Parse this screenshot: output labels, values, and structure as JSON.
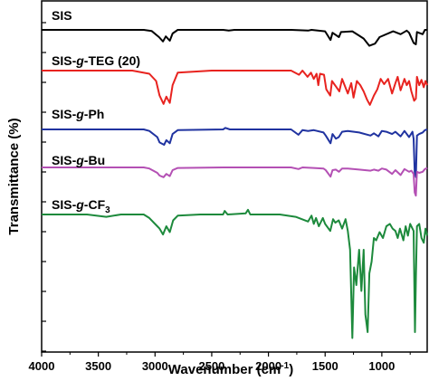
{
  "chart_data": {
    "type": "line",
    "title": "",
    "xlabel_main": "Wavenumber (cm",
    "xlabel_sup": "-1",
    "xlabel_end": ")",
    "ylabel": "Transmittance (%)",
    "xlim": [
      4000,
      600
    ],
    "x_reversed": true,
    "y_tick_labels": false,
    "x_ticks": [
      4000,
      3500,
      3000,
      2500,
      2000,
      1500,
      1000
    ],
    "x_tick_labels": [
      "4000",
      "3500",
      "3000",
      "2500",
      "2000",
      "1500",
      "1000"
    ],
    "grid": false,
    "legend": "inline labels above each trace",
    "series": [
      {
        "name": "SIS",
        "label_parts": [
          {
            "t": "SIS",
            "i": false
          }
        ],
        "color": "#000000",
        "points": [
          [
            4000,
            0
          ],
          [
            3500,
            0
          ],
          [
            3100,
            0
          ],
          [
            3030,
            -1.5
          ],
          [
            2965,
            -10
          ],
          [
            2930,
            -16
          ],
          [
            2905,
            -9
          ],
          [
            2870,
            -15
          ],
          [
            2845,
            -5
          ],
          [
            2800,
            0
          ],
          [
            2400,
            0
          ],
          [
            2350,
            -1
          ],
          [
            2300,
            0
          ],
          [
            1800,
            0
          ],
          [
            1650,
            -1
          ],
          [
            1620,
            0
          ],
          [
            1500,
            -2
          ],
          [
            1452,
            -14
          ],
          [
            1435,
            -4
          ],
          [
            1378,
            -10
          ],
          [
            1360,
            -3
          ],
          [
            1260,
            -2
          ],
          [
            1200,
            -8
          ],
          [
            1160,
            -12
          ],
          [
            1110,
            -22
          ],
          [
            1060,
            -19
          ],
          [
            1020,
            -10
          ],
          [
            900,
            -2
          ],
          [
            835,
            -6
          ],
          [
            780,
            -1
          ],
          [
            760,
            -4
          ],
          [
            720,
            -18
          ],
          [
            700,
            -20
          ],
          [
            690,
            -3
          ],
          [
            640,
            -6
          ],
          [
            620,
            0
          ],
          [
            600,
            0
          ]
        ]
      },
      {
        "name": "SIS-g-TEG (20)",
        "label_parts": [
          {
            "t": "SIS-",
            "i": false
          },
          {
            "t": "g",
            "i": true
          },
          {
            "t": "-TEG (20)",
            "i": false
          }
        ],
        "color": "#e8231f",
        "points": [
          [
            4000,
            0
          ],
          [
            3600,
            0
          ],
          [
            3200,
            0
          ],
          [
            3050,
            -3
          ],
          [
            2990,
            -10
          ],
          [
            2960,
            -24
          ],
          [
            2925,
            -32
          ],
          [
            2900,
            -25
          ],
          [
            2870,
            -31
          ],
          [
            2845,
            -14
          ],
          [
            2800,
            -2
          ],
          [
            2500,
            0
          ],
          [
            2300,
            0
          ],
          [
            1950,
            0
          ],
          [
            1800,
            0
          ],
          [
            1730,
            -4
          ],
          [
            1700,
            0
          ],
          [
            1655,
            -6
          ],
          [
            1625,
            -2
          ],
          [
            1600,
            -8
          ],
          [
            1575,
            -3
          ],
          [
            1560,
            -14
          ],
          [
            1545,
            -3
          ],
          [
            1510,
            -4
          ],
          [
            1490,
            -18
          ],
          [
            1455,
            -24
          ],
          [
            1440,
            -10
          ],
          [
            1400,
            -16
          ],
          [
            1375,
            -20
          ],
          [
            1350,
            -8
          ],
          [
            1300,
            -22
          ],
          [
            1270,
            -12
          ],
          [
            1250,
            -26
          ],
          [
            1220,
            -10
          ],
          [
            1190,
            -14
          ],
          [
            1160,
            -20
          ],
          [
            1130,
            -28
          ],
          [
            1105,
            -33
          ],
          [
            1070,
            -24
          ],
          [
            1040,
            -18
          ],
          [
            1010,
            -8
          ],
          [
            980,
            -13
          ],
          [
            945,
            -8
          ],
          [
            910,
            -22
          ],
          [
            880,
            -12
          ],
          [
            860,
            -6
          ],
          [
            835,
            -19
          ],
          [
            800,
            -8
          ],
          [
            780,
            -14
          ],
          [
            760,
            -10
          ],
          [
            740,
            -20
          ],
          [
            715,
            -29
          ],
          [
            700,
            -27
          ],
          [
            690,
            -6
          ],
          [
            670,
            -14
          ],
          [
            650,
            -9
          ],
          [
            630,
            -16
          ],
          [
            615,
            -10
          ],
          [
            600,
            -14
          ]
        ]
      },
      {
        "name": "SIS-g-Ph",
        "label_parts": [
          {
            "t": "SIS-",
            "i": false
          },
          {
            "t": "g",
            "i": true
          },
          {
            "t": "-Ph",
            "i": false
          }
        ],
        "color": "#2033a0",
        "points": [
          [
            4000,
            0
          ],
          [
            3500,
            0
          ],
          [
            3100,
            0
          ],
          [
            3050,
            -2
          ],
          [
            2980,
            -10
          ],
          [
            2960,
            -17
          ],
          [
            2920,
            -20
          ],
          [
            2900,
            -14
          ],
          [
            2870,
            -18
          ],
          [
            2845,
            -6
          ],
          [
            2800,
            -1
          ],
          [
            2400,
            0
          ],
          [
            2380,
            2
          ],
          [
            2340,
            0
          ],
          [
            2200,
            0
          ],
          [
            1800,
            0
          ],
          [
            1735,
            -7
          ],
          [
            1700,
            -1
          ],
          [
            1650,
            -2
          ],
          [
            1600,
            -1
          ],
          [
            1515,
            -4
          ],
          [
            1495,
            -8
          ],
          [
            1452,
            -18
          ],
          [
            1435,
            -6
          ],
          [
            1405,
            -12
          ],
          [
            1380,
            -10
          ],
          [
            1350,
            -3
          ],
          [
            1300,
            -2
          ],
          [
            1200,
            -4
          ],
          [
            1100,
            -8
          ],
          [
            1070,
            -5
          ],
          [
            1030,
            -9
          ],
          [
            1000,
            -2
          ],
          [
            960,
            -3
          ],
          [
            910,
            -6
          ],
          [
            880,
            -3
          ],
          [
            835,
            -9
          ],
          [
            800,
            -2
          ],
          [
            760,
            -10
          ],
          [
            730,
            -3
          ],
          [
            720,
            -12
          ],
          [
            710,
            -55
          ],
          [
            700,
            -62
          ],
          [
            690,
            -8
          ],
          [
            670,
            -6
          ],
          [
            640,
            -4
          ],
          [
            620,
            -1
          ],
          [
            600,
            0
          ]
        ]
      },
      {
        "name": "SIS-g-Bu",
        "label_parts": [
          {
            "t": "SIS-",
            "i": false
          },
          {
            "t": "g",
            "i": true
          },
          {
            "t": "-Bu",
            "i": false
          }
        ],
        "color": "#b450b4",
        "points": [
          [
            4000,
            0
          ],
          [
            3500,
            0
          ],
          [
            3100,
            0
          ],
          [
            3050,
            -2
          ],
          [
            2980,
            -10
          ],
          [
            2960,
            -15
          ],
          [
            2925,
            -18
          ],
          [
            2900,
            -12
          ],
          [
            2870,
            -16
          ],
          [
            2845,
            -5
          ],
          [
            2800,
            -1
          ],
          [
            2400,
            0
          ],
          [
            2200,
            0
          ],
          [
            1800,
            0
          ],
          [
            1735,
            -3
          ],
          [
            1700,
            0
          ],
          [
            1600,
            -1
          ],
          [
            1515,
            -2
          ],
          [
            1495,
            -5
          ],
          [
            1452,
            -17
          ],
          [
            1435,
            -5
          ],
          [
            1405,
            -4
          ],
          [
            1378,
            -8
          ],
          [
            1350,
            -2
          ],
          [
            1300,
            -2
          ],
          [
            1200,
            -4
          ],
          [
            1100,
            -6
          ],
          [
            1070,
            -4
          ],
          [
            1030,
            -6
          ],
          [
            1000,
            -2
          ],
          [
            960,
            -4
          ],
          [
            910,
            -12
          ],
          [
            880,
            -5
          ],
          [
            835,
            -14
          ],
          [
            800,
            -3
          ],
          [
            760,
            -8
          ],
          [
            740,
            -6
          ],
          [
            720,
            -12
          ],
          [
            710,
            -46
          ],
          [
            700,
            -52
          ],
          [
            690,
            -8
          ],
          [
            670,
            -10
          ],
          [
            640,
            -8
          ],
          [
            620,
            -3
          ],
          [
            600,
            -1
          ]
        ]
      },
      {
        "name": "SIS-g-CF3",
        "label_parts": [
          {
            "t": "SIS-",
            "i": false
          },
          {
            "t": "g",
            "i": true
          },
          {
            "t": "-CF",
            "i": false
          },
          {
            "t": "3",
            "i": false,
            "sub": true
          }
        ],
        "color": "#1d8a3c",
        "points": [
          [
            4000,
            0
          ],
          [
            3600,
            0
          ],
          [
            3430,
            -2
          ],
          [
            3300,
            0
          ],
          [
            3100,
            0
          ],
          [
            3050,
            -3
          ],
          [
            2980,
            -10
          ],
          [
            2960,
            -12
          ],
          [
            2930,
            -17
          ],
          [
            2900,
            -10
          ],
          [
            2870,
            -15
          ],
          [
            2840,
            -5
          ],
          [
            2800,
            -1
          ],
          [
            2600,
            0
          ],
          [
            2400,
            0
          ],
          [
            2385,
            3
          ],
          [
            2360,
            0
          ],
          [
            2200,
            1
          ],
          [
            2180,
            4
          ],
          [
            2160,
            0
          ],
          [
            2050,
            0
          ],
          [
            1900,
            0
          ],
          [
            1760,
            -2
          ],
          [
            1650,
            -6
          ],
          [
            1620,
            -1
          ],
          [
            1600,
            -8
          ],
          [
            1580,
            -3
          ],
          [
            1555,
            -10
          ],
          [
            1520,
            -3
          ],
          [
            1500,
            -8
          ],
          [
            1455,
            -14
          ],
          [
            1430,
            -4
          ],
          [
            1410,
            -7
          ],
          [
            1380,
            -5
          ],
          [
            1350,
            -12
          ],
          [
            1320,
            -4
          ],
          [
            1300,
            -14
          ],
          [
            1280,
            -30
          ],
          [
            1260,
            -105
          ],
          [
            1245,
            -45
          ],
          [
            1225,
            -60
          ],
          [
            1200,
            -30
          ],
          [
            1180,
            -65
          ],
          [
            1160,
            -30
          ],
          [
            1145,
            -85
          ],
          [
            1125,
            -100
          ],
          [
            1110,
            -50
          ],
          [
            1090,
            -40
          ],
          [
            1070,
            -20
          ],
          [
            1050,
            -22
          ],
          [
            1020,
            -15
          ],
          [
            990,
            -20
          ],
          [
            960,
            -10
          ],
          [
            930,
            -8
          ],
          [
            905,
            -12
          ],
          [
            880,
            -14
          ],
          [
            860,
            -20
          ],
          [
            840,
            -12
          ],
          [
            810,
            -22
          ],
          [
            790,
            -10
          ],
          [
            770,
            -18
          ],
          [
            750,
            -8
          ],
          [
            720,
            -14
          ],
          [
            708,
            -100
          ],
          [
            700,
            -55
          ],
          [
            690,
            -10
          ],
          [
            670,
            -8
          ],
          [
            650,
            -20
          ],
          [
            630,
            -24
          ],
          [
            615,
            -12
          ],
          [
            600,
            -18
          ]
        ]
      }
    ]
  }
}
